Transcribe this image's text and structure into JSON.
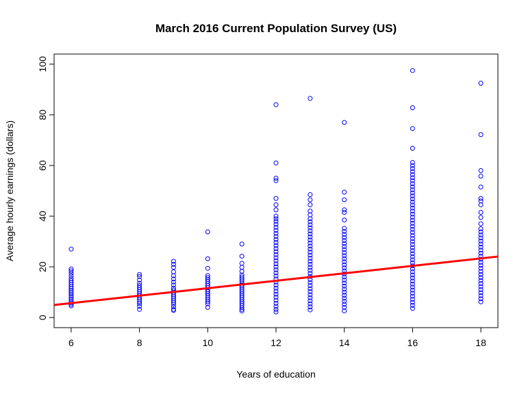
{
  "chart_data": {
    "type": "scatter",
    "title": "March 2016 Current Population Survey (US)",
    "xlabel": "Years of education",
    "ylabel": "Average hourly earnings (dollars)",
    "xlim": [
      5.5,
      18.5
    ],
    "ylim": [
      -4,
      104
    ],
    "xticks": [
      6,
      8,
      10,
      12,
      14,
      16,
      18
    ],
    "yticks": [
      0,
      20,
      40,
      60,
      80,
      100
    ],
    "grid": false,
    "legend": "none",
    "point_color": "#0000ff",
    "line_color": "#ff0000",
    "regression_line": {
      "intercept": -3.13,
      "slope": 1.47
    },
    "points": [
      {
        "x": 6,
        "y": [
          27,
          19.2,
          18.4,
          17.5,
          16.5,
          15.4,
          14.6,
          13.8,
          13.0,
          12.2,
          11.5,
          10.7,
          10.0,
          9.3,
          8.6,
          7.9,
          7.2,
          6.5,
          5.8,
          5.2,
          4.6
        ]
      },
      {
        "x": 8,
        "y": [
          17,
          16.2,
          14.8,
          13.5,
          12.6,
          11.8,
          11.0,
          10.2,
          9.4,
          8.6,
          7.8,
          7.0,
          6.2,
          5.4,
          4.4,
          3.2
        ]
      },
      {
        "x": 9,
        "y": [
          22.2,
          21.0,
          19.8,
          18.0,
          16.5,
          15.2,
          14.0,
          12.8,
          11.6,
          10.8,
          10.0,
          9.2,
          8.4,
          7.6,
          6.8,
          6.0,
          5.2,
          4.2,
          3.2,
          2.8
        ]
      },
      {
        "x": 10,
        "y": [
          33.8,
          23.2,
          19.4,
          16.6,
          15.8,
          15.0,
          14.2,
          13.4,
          12.6,
          11.8,
          11.0,
          10.2,
          9.4,
          8.6,
          7.8,
          7.0,
          6.2,
          5.4,
          4.0
        ]
      },
      {
        "x": 11,
        "y": [
          29,
          24.2,
          21.4,
          19.8,
          18.2,
          16.8,
          16.0,
          15.2,
          14.4,
          13.6,
          12.8,
          12.0,
          11.2,
          10.4,
          9.6,
          8.8,
          8.0,
          7.2,
          6.4,
          5.6,
          4.8,
          4.0,
          3.2,
          2.6
        ]
      },
      {
        "x": 12,
        "y": [
          84,
          61,
          55,
          54,
          47,
          44.5,
          42.5,
          40,
          39,
          38,
          36.8,
          35.6,
          34.4,
          33.2,
          32.0,
          30.8,
          29.6,
          28.4,
          27.2,
          26.0,
          24.8,
          23.6,
          22.4,
          21.2,
          20.0,
          18.8,
          17.6,
          16.4,
          15.2,
          14.0,
          12.8,
          11.6,
          10.4,
          9.2,
          8.0,
          6.8,
          5.6,
          4.4,
          3.2,
          2.2
        ]
      },
      {
        "x": 13,
        "y": [
          86.5,
          48.5,
          46.5,
          44.5,
          42,
          40.5,
          39,
          37.8,
          36.6,
          35.4,
          34.2,
          33.0,
          31.8,
          30.6,
          29.4,
          28.2,
          27.0,
          25.8,
          24.6,
          23.4,
          22.2,
          21.0,
          19.8,
          18.6,
          17.4,
          16.2,
          15.0,
          13.8,
          12.6,
          11.4,
          10.2,
          9.0,
          7.8,
          6.6,
          5.4,
          4.2,
          3.0
        ]
      },
      {
        "x": 14,
        "y": [
          77,
          49.5,
          46.5,
          42.5,
          41.5,
          38.5,
          35.2,
          34.0,
          32.8,
          31.6,
          30.4,
          29.2,
          28.0,
          26.8,
          25.6,
          24.4,
          23.2,
          22.0,
          20.8,
          19.6,
          18.4,
          17.2,
          16.0,
          14.8,
          13.6,
          12.4,
          11.2,
          10.0,
          8.8,
          7.6,
          6.4,
          5.2,
          4.0,
          2.6
        ]
      },
      {
        "x": 16,
        "y": [
          97.5,
          82.8,
          74.6,
          66.8,
          61.2,
          60.0,
          58.8,
          57.6,
          56.4,
          55.2,
          54.0,
          52.8,
          51.6,
          50.4,
          49.2,
          48.0,
          46.8,
          45.6,
          44.4,
          43.2,
          42.0,
          40.8,
          39.6,
          38.4,
          37.2,
          36.0,
          34.8,
          33.6,
          32.4,
          31.2,
          30.0,
          28.8,
          27.6,
          26.4,
          25.2,
          24.0,
          22.8,
          21.6,
          20.4,
          19.2,
          18.0,
          16.8,
          15.6,
          14.4,
          13.2,
          12.0,
          10.8,
          9.6,
          8.4,
          7.2,
          6.0,
          4.8,
          3.6
        ]
      },
      {
        "x": 18,
        "y": [
          92.5,
          72.2,
          58,
          55.8,
          51.5,
          47,
          46,
          44.5,
          41.5,
          39.5,
          37.0,
          35.0,
          33.8,
          32.6,
          31.4,
          30.2,
          29.0,
          27.8,
          26.6,
          25.4,
          24.2,
          23.0,
          21.8,
          20.6,
          19.4,
          18.2,
          17.0,
          15.8,
          14.6,
          13.4,
          12.2,
          11.0,
          9.8,
          8.6,
          7.4,
          6.2
        ]
      }
    ]
  }
}
